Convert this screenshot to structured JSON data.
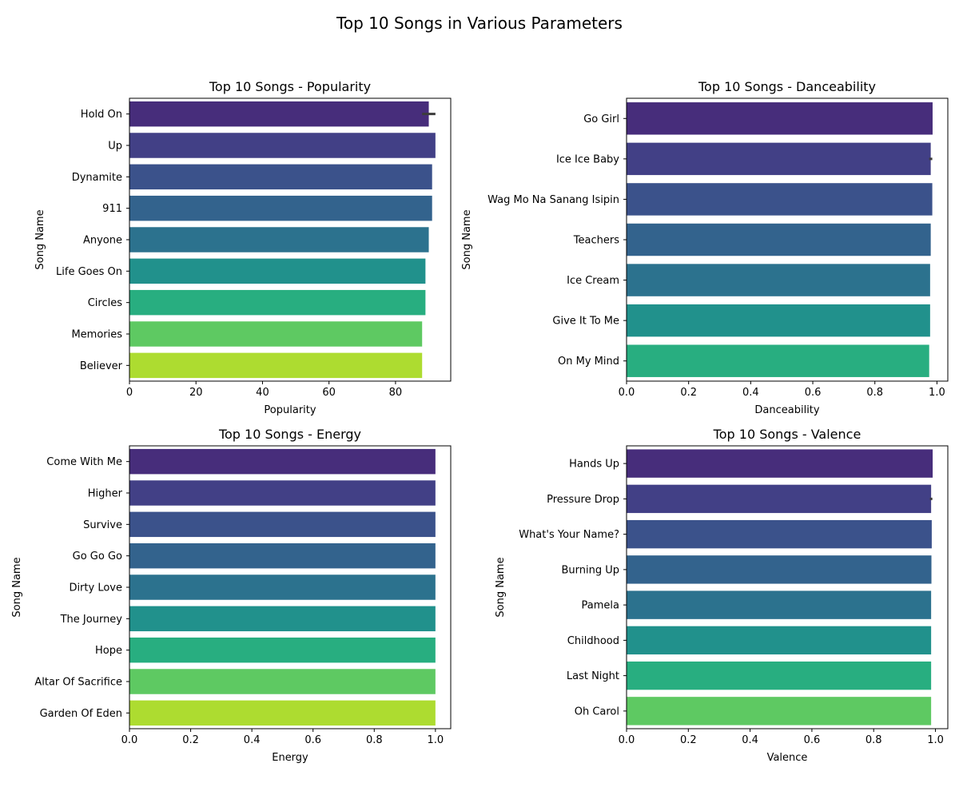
{
  "figure": {
    "title": "Top 10 Songs in Various Parameters"
  },
  "palette": [
    "#472d7b",
    "#424086",
    "#3b528b",
    "#33638d",
    "#2c728e",
    "#21918c",
    "#28ae80",
    "#5ec962",
    "#addc30"
  ],
  "chart_data": [
    {
      "type": "bar",
      "orientation": "horizontal",
      "title": "Top 10 Songs - Popularity",
      "xlabel": "Popularity",
      "ylabel": "Song Name",
      "xlim": [
        0,
        96.6
      ],
      "xticks": [
        0,
        20,
        40,
        60,
        80
      ],
      "xtick_labels": [
        "0",
        "20",
        "40",
        "60",
        "80"
      ],
      "categories": [
        "Hold On",
        "Up",
        "Dynamite",
        "911",
        "Anyone",
        "Life Goes On",
        "Circles",
        "Memories",
        "Believer"
      ],
      "values": [
        90,
        92,
        91,
        91,
        90,
        89,
        89,
        88,
        88
      ],
      "error_bars": [
        [
          88,
          92
        ],
        null,
        null,
        null,
        null,
        null,
        null,
        null,
        null
      ]
    },
    {
      "type": "bar",
      "orientation": "horizontal",
      "title": "Top 10 Songs - Danceability",
      "xlabel": "Danceability",
      "ylabel": "Song Name",
      "xlim": [
        0,
        1.035
      ],
      "xticks": [
        0,
        0.2,
        0.4,
        0.6,
        0.8,
        1.0
      ],
      "xtick_labels": [
        "0.0",
        "0.2",
        "0.4",
        "0.6",
        "0.8",
        "1.0"
      ],
      "categories": [
        "Go Girl",
        "Ice Ice Baby",
        "Wag Mo Na Sanang Isipin",
        "Teachers",
        "Ice Cream",
        "Give It To Me",
        "On My Mind"
      ],
      "values": [
        0.986,
        0.98,
        0.985,
        0.98,
        0.978,
        0.978,
        0.975
      ],
      "error_bars": [
        null,
        [
          0.975,
          0.985
        ],
        null,
        null,
        null,
        null,
        null
      ]
    },
    {
      "type": "bar",
      "orientation": "horizontal",
      "title": "Top 10 Songs - Energy",
      "xlabel": "Energy",
      "ylabel": "Song Name",
      "xlim": [
        0,
        1.05
      ],
      "xticks": [
        0,
        0.2,
        0.4,
        0.6,
        0.8,
        1.0
      ],
      "xtick_labels": [
        "0.0",
        "0.2",
        "0.4",
        "0.6",
        "0.8",
        "1.0"
      ],
      "categories": [
        "Come With Me",
        "Higher",
        "Survive",
        "Go Go Go",
        "Dirty Love",
        "The Journey",
        "Hope",
        "Altar Of Sacrifice",
        "Garden Of Eden"
      ],
      "values": [
        1.0,
        1.0,
        1.0,
        1.0,
        1.0,
        1.0,
        1.0,
        1.0,
        1.0
      ],
      "error_bars": [
        null,
        null,
        null,
        null,
        null,
        null,
        null,
        null,
        null
      ]
    },
    {
      "type": "bar",
      "orientation": "horizontal",
      "title": "Top 10 Songs - Valence",
      "xlabel": "Valence",
      "ylabel": "Song Name",
      "xlim": [
        0,
        1.04
      ],
      "xticks": [
        0,
        0.2,
        0.4,
        0.6,
        0.8,
        1.0
      ],
      "xtick_labels": [
        "0.0",
        "0.2",
        "0.4",
        "0.6",
        "0.8",
        "1.0"
      ],
      "categories": [
        "Hands Up",
        "Pressure Drop",
        "What's Your Name?",
        "Burning Up",
        "Pamela",
        "Childhood",
        "Last Night",
        "Oh Carol"
      ],
      "values": [
        0.991,
        0.986,
        0.988,
        0.987,
        0.986,
        0.986,
        0.986,
        0.986
      ],
      "error_bars": [
        null,
        [
          0.982,
          0.99
        ],
        null,
        null,
        null,
        null,
        null,
        null
      ]
    }
  ]
}
